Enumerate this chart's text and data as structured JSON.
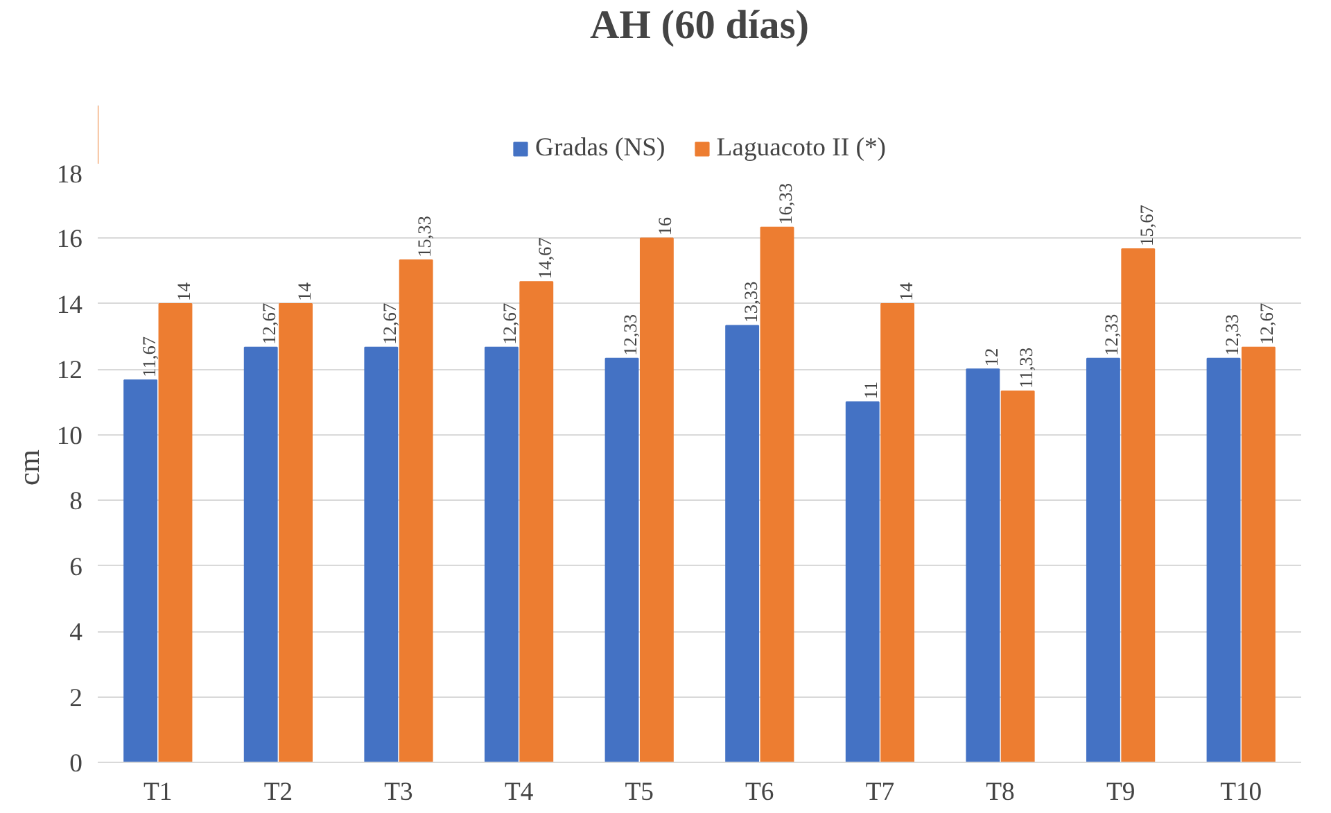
{
  "chart_data": {
    "type": "bar",
    "title": "AH (60 días)",
    "ylabel": "cm",
    "categories": [
      "T1",
      "T2",
      "T3",
      "T4",
      "T5",
      "T6",
      "T7",
      "T8",
      "T9",
      "T10"
    ],
    "series": [
      {
        "name": "Gradas (NS)",
        "color": "#4472c4",
        "values": [
          11.67,
          12.67,
          12.67,
          12.67,
          12.33,
          13.33,
          11,
          12,
          12.33,
          12.33
        ],
        "value_labels": [
          "11,67",
          "12,67",
          "12,67",
          "12,67",
          "12,33",
          "13,33",
          "11",
          "12",
          "12,33",
          "12,33"
        ]
      },
      {
        "name": "Laguacoto II (*)",
        "color": "#ed7d31",
        "values": [
          14,
          14,
          15.33,
          14.67,
          16,
          16.33,
          14,
          11.33,
          15.67,
          12.67
        ],
        "value_labels": [
          "14",
          "14",
          "15,33",
          "14,67",
          "16",
          "16,33",
          "14",
          "11,33",
          "15,67",
          "12,67"
        ]
      }
    ],
    "ylim": [
      0,
      18
    ],
    "yticks": [
      0,
      2,
      4,
      6,
      8,
      10,
      12,
      14,
      16,
      18
    ],
    "grid": "y",
    "legend": "top"
  }
}
